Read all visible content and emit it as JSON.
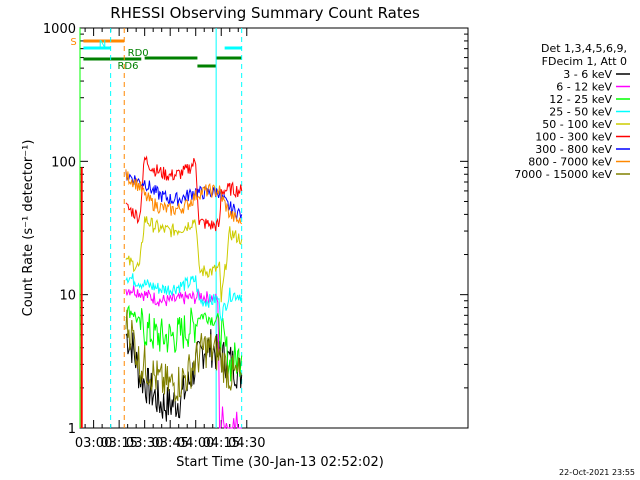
{
  "chart_data": {
    "type": "line",
    "title": "RHESSI Observing Summary Count Rates",
    "xlabel": "Start Time (30-Jan-13 02:52:02)",
    "ylabel": "Count Rate (s⁻¹ detector⁻¹)",
    "y_scale": "log",
    "ylim": [
      1,
      1000
    ],
    "xlim_minutes": [
      52,
      280
    ],
    "x_ticks": [
      {
        "label": "03:00",
        "minute": 60
      },
      {
        "label": "03:15",
        "minute": 75
      },
      {
        "label": "03:30",
        "minute": 90
      },
      {
        "label": "03:45",
        "minute": 105
      },
      {
        "label": "04:00",
        "minute": 120
      },
      {
        "label": "04:15",
        "minute": 135
      },
      {
        "label": "04:30",
        "minute": 150
      }
    ],
    "y_ticks": [
      {
        "label": "1",
        "value": 1
      },
      {
        "label": "10",
        "value": 10
      },
      {
        "label": "100",
        "value": 100
      },
      {
        "label": "1000",
        "value": 1000
      }
    ],
    "legend": {
      "position": "right",
      "header": [
        "Det 1,3,4,5,6,9,",
        "FDecim 1, Att 0"
      ]
    },
    "series": [
      {
        "name": "3 - 6 keV",
        "color": "#000000",
        "points": [
          [
            79,
            5
          ],
          [
            83,
            4
          ],
          [
            87,
            2.5
          ],
          [
            90,
            2.2
          ],
          [
            95,
            1.8
          ],
          [
            100,
            1.5
          ],
          [
            105,
            1.5
          ],
          [
            110,
            1.6
          ],
          [
            115,
            2
          ],
          [
            120,
            3
          ],
          [
            125,
            4
          ],
          [
            130,
            4
          ],
          [
            133,
            3.5
          ],
          [
            140,
            3.2
          ],
          [
            147,
            2.5
          ]
        ]
      },
      {
        "name": "6 - 12 keV",
        "color": "#ff00ff",
        "points": [
          [
            79,
            11
          ],
          [
            83,
            11
          ],
          [
            87,
            10.5
          ],
          [
            90,
            10
          ],
          [
            95,
            9.5
          ],
          [
            100,
            9
          ],
          [
            105,
            9
          ],
          [
            110,
            9.2
          ],
          [
            115,
            9.5
          ],
          [
            120,
            9.5
          ],
          [
            122,
            10
          ],
          [
            126,
            9.5
          ],
          [
            130,
            9.5
          ],
          [
            133,
            9
          ],
          [
            134,
            1.1
          ],
          [
            138,
            1.1
          ],
          [
            140,
            1
          ],
          [
            147,
            1
          ]
        ]
      },
      {
        "name": "12 - 25 keV",
        "color": "#00ff00",
        "points": [
          [
            79,
            7.5
          ],
          [
            83,
            7.5
          ],
          [
            87,
            6
          ],
          [
            90,
            5.5
          ],
          [
            95,
            5
          ],
          [
            100,
            4.8
          ],
          [
            105,
            4.8
          ],
          [
            110,
            5
          ],
          [
            115,
            5.5
          ],
          [
            120,
            6
          ],
          [
            122,
            7
          ],
          [
            126,
            7
          ],
          [
            130,
            6.5
          ],
          [
            133,
            6.5
          ],
          [
            140,
            3
          ],
          [
            147,
            3.5
          ]
        ]
      },
      {
        "name": "25 - 50 keV",
        "color": "#00ffff",
        "points": [
          [
            79,
            14
          ],
          [
            83,
            13
          ],
          [
            87,
            12.5
          ],
          [
            90,
            12
          ],
          [
            95,
            11.5
          ],
          [
            100,
            11
          ],
          [
            105,
            11
          ],
          [
            110,
            11.5
          ],
          [
            115,
            12
          ],
          [
            120,
            13
          ],
          [
            122,
            9
          ],
          [
            126,
            9
          ],
          [
            130,
            9
          ],
          [
            133,
            9.5
          ],
          [
            135,
            7
          ],
          [
            140,
            10
          ],
          [
            147,
            10
          ]
        ]
      },
      {
        "name": "50 - 100 keV",
        "color": "#cccc00",
        "points": [
          [
            79,
            18
          ],
          [
            83,
            17
          ],
          [
            87,
            16
          ],
          [
            90,
            37
          ],
          [
            95,
            33
          ],
          [
            100,
            31
          ],
          [
            105,
            30
          ],
          [
            110,
            31
          ],
          [
            115,
            33
          ],
          [
            120,
            37
          ],
          [
            122,
            15
          ],
          [
            126,
            15
          ],
          [
            130,
            15
          ],
          [
            134,
            16
          ],
          [
            135,
            9
          ],
          [
            140,
            29
          ],
          [
            147,
            26
          ]
        ]
      },
      {
        "name": "100 - 300 keV",
        "color": "#ff0000",
        "points": [
          [
            79,
            45
          ],
          [
            83,
            42
          ],
          [
            87,
            38
          ],
          [
            90,
            105
          ],
          [
            95,
            88
          ],
          [
            100,
            82
          ],
          [
            105,
            78
          ],
          [
            110,
            80
          ],
          [
            115,
            86
          ],
          [
            120,
            100
          ],
          [
            122,
            35
          ],
          [
            126,
            34
          ],
          [
            130,
            33
          ],
          [
            134,
            33
          ],
          [
            135,
            60
          ],
          [
            140,
            62
          ],
          [
            147,
            60
          ]
        ]
      },
      {
        "name": "300 - 800 keV",
        "color": "#0000ff",
        "points": [
          [
            79,
            80
          ],
          [
            83,
            75
          ],
          [
            87,
            70
          ],
          [
            90,
            70
          ],
          [
            95,
            60
          ],
          [
            100,
            55
          ],
          [
            105,
            52
          ],
          [
            110,
            52
          ],
          [
            115,
            55
          ],
          [
            120,
            60
          ],
          [
            122,
            58
          ],
          [
            126,
            58
          ],
          [
            130,
            58
          ],
          [
            134,
            60
          ],
          [
            135,
            53
          ],
          [
            140,
            45
          ],
          [
            147,
            40
          ]
        ]
      },
      {
        "name": "800 - 7000 keV",
        "color": "#ff8800",
        "points": [
          [
            79,
            78
          ],
          [
            83,
            72
          ],
          [
            87,
            65
          ],
          [
            90,
            55
          ],
          [
            95,
            48
          ],
          [
            100,
            45
          ],
          [
            105,
            43
          ],
          [
            110,
            44
          ],
          [
            115,
            47
          ],
          [
            120,
            55
          ],
          [
            122,
            58
          ],
          [
            126,
            60
          ],
          [
            130,
            60
          ],
          [
            134,
            60
          ],
          [
            135,
            55
          ],
          [
            140,
            40
          ],
          [
            147,
            34
          ]
        ]
      },
      {
        "name": "7000 - 15000 keV",
        "color": "#808000",
        "points": [
          [
            79,
            6
          ],
          [
            83,
            5
          ],
          [
            87,
            3
          ],
          [
            90,
            3
          ],
          [
            95,
            2.5
          ],
          [
            100,
            2.2
          ],
          [
            105,
            2.1
          ],
          [
            110,
            2.2
          ],
          [
            115,
            2.5
          ],
          [
            120,
            3.2
          ],
          [
            125,
            4
          ],
          [
            130,
            3.8
          ],
          [
            134,
            3.5
          ],
          [
            140,
            2.5
          ],
          [
            147,
            2.5
          ]
        ]
      }
    ],
    "spike": {
      "minute": 53,
      "peak": 90
    },
    "state_bars": [
      {
        "label": "S",
        "color": "#ff8800",
        "segments": [
          [
            54,
            78
          ]
        ]
      },
      {
        "label": "N",
        "color": "#00ffff",
        "segments": [
          [
            54,
            70
          ],
          [
            137,
            147
          ]
        ]
      },
      {
        "label": "RD0",
        "color": "#008000",
        "segments": [
          [
            90,
            121
          ],
          [
            121,
            132
          ],
          [
            132,
            147
          ]
        ]
      },
      {
        "label": "RD6",
        "color": "#008000",
        "segments": [
          [
            54,
            88
          ]
        ]
      }
    ],
    "vlines": [
      {
        "minute": 52,
        "color": "#00ff00",
        "style": "solid"
      },
      {
        "minute": 70,
        "color": "#00ffff",
        "style": "dashed"
      },
      {
        "minute": 78,
        "color": "#ff8800",
        "style": "dashed"
      },
      {
        "minute": 132,
        "color": "#00ffff",
        "style": "solid"
      },
      {
        "minute": 147,
        "color": "#00ffff",
        "style": "dashed"
      }
    ],
    "footer_date": "22-Oct-2021 23:55"
  }
}
